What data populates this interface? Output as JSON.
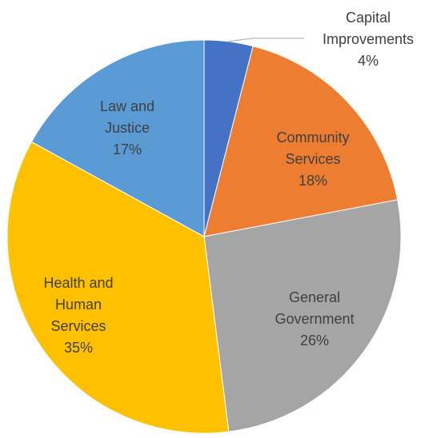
{
  "chart_data": {
    "type": "pie",
    "title": "",
    "slices": [
      {
        "label": "Capital Improvements",
        "lines": [
          "Capital",
          "Improvements"
        ],
        "value": 4,
        "percent_label": "4%",
        "color": "#4472c4"
      },
      {
        "label": "Community Services",
        "lines": [
          "Community",
          "Services"
        ],
        "value": 18,
        "percent_label": "18%",
        "color": "#ed7d31"
      },
      {
        "label": "General Government",
        "lines": [
          "General",
          "Government"
        ],
        "value": 26,
        "percent_label": "26%",
        "color": "#a5a5a5"
      },
      {
        "label": "Health and Human Services",
        "lines": [
          "Health and",
          "Human",
          "Services"
        ],
        "value": 35,
        "percent_label": "35%",
        "color": "#ffc000"
      },
      {
        "label": "Law and Justice",
        "lines": [
          "Law and",
          "Justice"
        ],
        "value": 17,
        "percent_label": "17%",
        "color": "#5b9bd5"
      }
    ],
    "start_angle": "12 o'clock",
    "direction": "clockwise",
    "legend": "none",
    "data_labels": "category name and percentage"
  }
}
